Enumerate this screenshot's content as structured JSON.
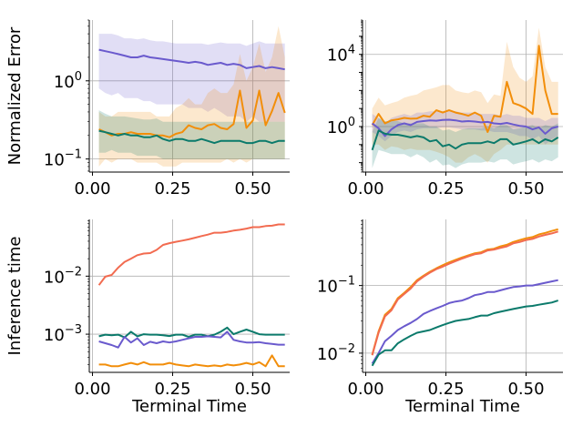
{
  "chart_data": [
    {
      "type": "line",
      "ylabel": "Normalized Error",
      "xlabel": "",
      "y_scale": "log",
      "xlim": [
        -0.01,
        0.615
      ],
      "ylim": [
        0.068,
        6.0
      ],
      "grid": true,
      "xticks": [
        0.0,
        0.25,
        0.5
      ],
      "xtick_labels": [
        "0.00",
        "0.25",
        "0.50"
      ],
      "yticks": [
        0.1,
        1
      ],
      "ytick_labels": [
        "10^-1",
        "10^0"
      ],
      "x": [
        0.02,
        0.04,
        0.06,
        0.08,
        0.1,
        0.12,
        0.14,
        0.16,
        0.18,
        0.2,
        0.22,
        0.24,
        0.26,
        0.28,
        0.3,
        0.32,
        0.34,
        0.36,
        0.38,
        0.4,
        0.42,
        0.44,
        0.46,
        0.48,
        0.5,
        0.52,
        0.54,
        0.56,
        0.58,
        0.6
      ],
      "series": [
        {
          "color": "#6a5acd",
          "values": [
            2.5,
            2.4,
            2.3,
            2.2,
            2.1,
            2.0,
            2.0,
            2.1,
            2.0,
            1.95,
            1.9,
            1.85,
            1.8,
            1.75,
            1.7,
            1.75,
            1.7,
            1.6,
            1.65,
            1.7,
            1.6,
            1.65,
            1.6,
            1.45,
            1.5,
            1.55,
            1.45,
            1.5,
            1.45,
            1.4
          ],
          "band_low": [
            0.8,
            0.7,
            0.65,
            0.7,
            0.6,
            0.6,
            0.6,
            0.55,
            0.55,
            0.5,
            0.5,
            0.5,
            0.5,
            0.5,
            0.45,
            0.45,
            0.45,
            0.4,
            0.45,
            0.4,
            0.35,
            0.35,
            0.35,
            0.3,
            0.35,
            0.3,
            0.3,
            0.3,
            0.3,
            0.3
          ],
          "band_high": [
            4.0,
            4.0,
            4.0,
            3.8,
            3.5,
            3.5,
            3.4,
            3.5,
            3.3,
            3.2,
            3.2,
            3.1,
            3.0,
            3.0,
            3.0,
            3.0,
            3.0,
            2.9,
            3.0,
            3.1,
            3.0,
            3.0,
            3.0,
            2.8,
            3.0,
            3.2,
            3.0,
            3.0,
            3.0,
            3.0
          ]
        },
        {
          "color": "#f28e0a",
          "values": [
            0.24,
            0.22,
            0.2,
            0.21,
            0.21,
            0.22,
            0.21,
            0.21,
            0.21,
            0.2,
            0.2,
            0.19,
            0.21,
            0.22,
            0.27,
            0.25,
            0.24,
            0.27,
            0.28,
            0.25,
            0.24,
            0.28,
            0.75,
            0.25,
            0.31,
            0.75,
            0.27,
            0.41,
            0.7,
            0.39
          ],
          "band_low": [
            0.08,
            0.1,
            0.09,
            0.1,
            0.1,
            0.1,
            0.09,
            0.09,
            0.09,
            0.09,
            0.08,
            0.08,
            0.08,
            0.09,
            0.09,
            0.09,
            0.09,
            0.09,
            0.09,
            0.09,
            0.1,
            0.09,
            0.1,
            0.09,
            0.1,
            0.1,
            0.1,
            0.1,
            0.1,
            0.1
          ],
          "band_high": [
            0.4,
            0.35,
            0.35,
            0.4,
            0.4,
            0.4,
            0.4,
            0.4,
            0.4,
            0.35,
            0.35,
            0.35,
            0.45,
            0.5,
            0.6,
            0.5,
            0.5,
            0.7,
            0.8,
            0.7,
            0.7,
            0.9,
            2.2,
            1.0,
            1.5,
            3.0,
            1.3,
            2.0,
            5.0,
            2.0
          ]
        },
        {
          "color": "#0b7a6b",
          "values": [
            0.23,
            0.22,
            0.21,
            0.2,
            0.21,
            0.2,
            0.2,
            0.19,
            0.19,
            0.2,
            0.18,
            0.17,
            0.18,
            0.18,
            0.17,
            0.17,
            0.18,
            0.17,
            0.16,
            0.17,
            0.17,
            0.17,
            0.17,
            0.16,
            0.16,
            0.17,
            0.17,
            0.16,
            0.17,
            0.17
          ],
          "band_low": [
            0.12,
            0.12,
            0.13,
            0.12,
            0.12,
            0.12,
            0.11,
            0.11,
            0.11,
            0.11,
            0.1,
            0.1,
            0.1,
            0.1,
            0.1,
            0.1,
            0.1,
            0.1,
            0.1,
            0.1,
            0.1,
            0.1,
            0.1,
            0.1,
            0.1,
            0.1,
            0.1,
            0.1,
            0.1,
            0.1
          ],
          "band_high": [
            0.42,
            0.38,
            0.35,
            0.35,
            0.35,
            0.34,
            0.33,
            0.32,
            0.32,
            0.33,
            0.3,
            0.3,
            0.3,
            0.3,
            0.3,
            0.3,
            0.3,
            0.3,
            0.3,
            0.3,
            0.3,
            0.3,
            0.3,
            0.3,
            0.3,
            0.3,
            0.3,
            0.3,
            0.3,
            0.3
          ]
        }
      ]
    },
    {
      "type": "line",
      "ylabel": "",
      "xlabel": "",
      "y_scale": "log",
      "xlim": [
        -0.01,
        0.615
      ],
      "ylim": [
        0.003,
        800000
      ],
      "grid": true,
      "xticks": [
        0.0,
        0.25,
        0.5
      ],
      "xtick_labels": [
        "0.00",
        "0.25",
        "0.50"
      ],
      "yticks": [
        1,
        10000
      ],
      "ytick_labels": [
        "10^0",
        "10^4"
      ],
      "x": [
        0.02,
        0.04,
        0.06,
        0.08,
        0.1,
        0.12,
        0.14,
        0.16,
        0.18,
        0.2,
        0.22,
        0.24,
        0.26,
        0.28,
        0.3,
        0.32,
        0.34,
        0.36,
        0.38,
        0.4,
        0.42,
        0.44,
        0.46,
        0.48,
        0.5,
        0.52,
        0.54,
        0.56,
        0.58,
        0.6
      ],
      "series": [
        {
          "color": "#f28e0a",
          "values": [
            1.2,
            5,
            1.5,
            2.2,
            2.5,
            3,
            2.7,
            2.8,
            4,
            3.5,
            8,
            6,
            8,
            6,
            5,
            4,
            6,
            4,
            0.5,
            4,
            3.5,
            300,
            20,
            15,
            10,
            5,
            30000,
            100,
            5,
            5
          ],
          "band_low": [
            0.1,
            0.1,
            0.05,
            0.08,
            0.07,
            0.05,
            0.06,
            0.05,
            0.05,
            0.05,
            0.04,
            0.03,
            0.02,
            0.01,
            0.01,
            0.02,
            0.03,
            0.02,
            0.01,
            0.03,
            0.05,
            0.1,
            0.1,
            0.1,
            0.1,
            0.1,
            0.1,
            0.1,
            0.1,
            0.1
          ],
          "band_high": [
            10,
            40,
            15,
            20,
            25,
            40,
            50,
            60,
            100,
            120,
            150,
            200,
            200,
            100,
            80,
            70,
            100,
            80,
            20,
            60,
            50,
            50000,
            2000,
            500,
            300,
            600,
            300000,
            2000,
            300,
            300
          ]
        },
        {
          "color": "#6a5acd",
          "values": [
            1.5,
            0.8,
            0.3,
            0.7,
            1.2,
            1.5,
            1.2,
            1.8,
            2.0,
            2.2,
            2.1,
            2.3,
            2.4,
            2.2,
            1.9,
            2.0,
            1.9,
            1.7,
            1.8,
            1.5,
            1.4,
            1.6,
            1.3,
            1.1,
            1.0,
            0.7,
            0.9,
            0.4,
            0.8,
            1.0
          ],
          "band_low": [
            0.5,
            0.3,
            0.15,
            0.3,
            0.5,
            0.6,
            0.5,
            0.7,
            0.8,
            0.8,
            0.8,
            0.9,
            0.9,
            0.8,
            0.7,
            0.7,
            0.7,
            0.6,
            0.6,
            0.5,
            0.5,
            0.5,
            0.4,
            0.3,
            0.3,
            0.2,
            0.3,
            0.1,
            0.2,
            0.3
          ],
          "band_high": [
            5,
            3,
            1.5,
            3,
            4,
            5,
            4,
            6,
            6,
            7,
            7,
            7,
            8,
            7,
            6,
            6,
            6,
            5,
            5,
            5,
            4,
            5,
            4,
            4,
            3,
            3,
            3,
            2,
            3,
            3
          ]
        },
        {
          "color": "#0b7a6b",
          "values": [
            0.05,
            0.6,
            0.4,
            0.35,
            0.35,
            0.3,
            0.25,
            0.3,
            0.25,
            0.15,
            0.18,
            0.08,
            0.1,
            0.06,
            0.1,
            0.12,
            0.12,
            0.12,
            0.15,
            0.12,
            0.2,
            0.2,
            0.1,
            0.12,
            0.15,
            0.2,
            0.12,
            0.2,
            0.15,
            0.25
          ],
          "band_low": [
            0.005,
            0.05,
            0.04,
            0.03,
            0.03,
            0.03,
            0.02,
            0.03,
            0.02,
            0.01,
            0.015,
            0.007,
            0.008,
            0.005,
            0.008,
            0.01,
            0.01,
            0.01,
            0.012,
            0.01,
            0.015,
            0.015,
            0.008,
            0.01,
            0.012,
            0.015,
            0.01,
            0.015,
            0.012,
            0.02
          ],
          "band_high": [
            0.5,
            3,
            2,
            2,
            2,
            1.5,
            1.5,
            1.5,
            1.5,
            1,
            1,
            0.6,
            0.7,
            0.5,
            0.7,
            0.8,
            0.8,
            0.8,
            1,
            0.8,
            1.2,
            1.2,
            0.7,
            0.8,
            1,
            1.2,
            0.8,
            1.2,
            1,
            1.5
          ]
        }
      ]
    },
    {
      "type": "line",
      "ylabel": "Inference time",
      "xlabel": "Terminal Time",
      "y_scale": "log",
      "xlim": [
        -0.01,
        0.615
      ],
      "ylim": [
        0.00022,
        0.095
      ],
      "grid": true,
      "xticks": [
        0.0,
        0.25,
        0.5
      ],
      "xtick_labels": [
        "0.00",
        "0.25",
        "0.50"
      ],
      "yticks": [
        0.001,
        0.01
      ],
      "ytick_labels": [
        "10^-3",
        "10^-2"
      ],
      "x": [
        0.02,
        0.04,
        0.06,
        0.08,
        0.1,
        0.12,
        0.14,
        0.16,
        0.18,
        0.2,
        0.22,
        0.24,
        0.26,
        0.28,
        0.3,
        0.32,
        0.34,
        0.36,
        0.38,
        0.4,
        0.42,
        0.44,
        0.46,
        0.48,
        0.5,
        0.52,
        0.54,
        0.56,
        0.58,
        0.6
      ],
      "series": [
        {
          "color": "#f26b50",
          "values": [
            0.007,
            0.0098,
            0.0105,
            0.014,
            0.0175,
            0.02,
            0.023,
            0.0245,
            0.025,
            0.0283,
            0.0345,
            0.037,
            0.039,
            0.041,
            0.043,
            0.046,
            0.049,
            0.052,
            0.056,
            0.056,
            0.058,
            0.061,
            0.063,
            0.066,
            0.07,
            0.07,
            0.073,
            0.074,
            0.078,
            0.078
          ]
        },
        {
          "color": "#0b7a6b",
          "values": [
            0.00092,
            0.00098,
            0.00096,
            0.00098,
            0.00088,
            0.0011,
            0.00092,
            0.001,
            0.00098,
            0.00098,
            0.00096,
            0.00093,
            0.00098,
            0.00098,
            0.0009,
            0.00098,
            0.00098,
            0.00092,
            0.00098,
            0.0011,
            0.0013,
            0.001,
            0.0011,
            0.0012,
            0.0011,
            0.001,
            0.00098,
            0.00098,
            0.00098,
            0.00098
          ]
        },
        {
          "color": "#6a5acd",
          "values": [
            0.00075,
            0.0007,
            0.00065,
            0.00059,
            0.0009,
            0.00072,
            0.00085,
            0.00065,
            0.00074,
            0.0007,
            0.00075,
            0.00072,
            0.00075,
            0.0008,
            0.00085,
            0.0009,
            0.0009,
            0.00092,
            0.0009,
            0.00088,
            0.0011,
            0.0008,
            0.00075,
            0.00072,
            0.00072,
            0.00073,
            0.0007,
            0.00068,
            0.00066,
            0.00066
          ]
        },
        {
          "color": "#f28e0a",
          "values": [
            0.0003,
            0.0003,
            0.00028,
            0.00028,
            0.0003,
            0.00032,
            0.0003,
            0.00033,
            0.0003,
            0.0003,
            0.0003,
            0.00032,
            0.0003,
            0.00029,
            0.00028,
            0.0003,
            0.00029,
            0.00028,
            0.00029,
            0.00028,
            0.0003,
            0.00029,
            0.0003,
            0.00032,
            0.0003,
            0.00033,
            0.00028,
            0.00043,
            0.00028,
            0.00028
          ]
        }
      ]
    },
    {
      "type": "line",
      "ylabel": "",
      "xlabel": "Terminal Time",
      "y_scale": "log",
      "xlim": [
        -0.01,
        0.615
      ],
      "ylim": [
        0.0052,
        0.95
      ],
      "grid": true,
      "xticks": [
        0.0,
        0.25,
        0.5
      ],
      "xtick_labels": [
        "0.00",
        "0.25",
        "0.50"
      ],
      "yticks": [
        0.01,
        0.1
      ],
      "ytick_labels": [
        "10^-2",
        "10^-1"
      ],
      "x": [
        0.02,
        0.04,
        0.06,
        0.08,
        0.1,
        0.12,
        0.14,
        0.16,
        0.18,
        0.2,
        0.22,
        0.24,
        0.26,
        0.28,
        0.3,
        0.32,
        0.34,
        0.36,
        0.38,
        0.4,
        0.42,
        0.44,
        0.46,
        0.48,
        0.5,
        0.52,
        0.54,
        0.56,
        0.58,
        0.6
      ],
      "series": [
        {
          "color": "#f28e0a",
          "values": [
            0.0095,
            0.021,
            0.037,
            0.045,
            0.065,
            0.078,
            0.095,
            0.12,
            0.14,
            0.16,
            0.18,
            0.2,
            0.22,
            0.24,
            0.26,
            0.28,
            0.3,
            0.31,
            0.34,
            0.35,
            0.38,
            0.4,
            0.44,
            0.47,
            0.5,
            0.52,
            0.57,
            0.6,
            0.64,
            0.68
          ]
        },
        {
          "color": "#f26b50",
          "values": [
            0.0093,
            0.02,
            0.035,
            0.043,
            0.062,
            0.075,
            0.09,
            0.115,
            0.135,
            0.155,
            0.175,
            0.19,
            0.21,
            0.23,
            0.25,
            0.27,
            0.29,
            0.3,
            0.33,
            0.34,
            0.36,
            0.38,
            0.42,
            0.44,
            0.47,
            0.49,
            0.53,
            0.56,
            0.59,
            0.63
          ]
        },
        {
          "color": "#6a5acd",
          "values": [
            0.007,
            0.01,
            0.015,
            0.018,
            0.022,
            0.025,
            0.028,
            0.032,
            0.038,
            0.042,
            0.046,
            0.05,
            0.055,
            0.058,
            0.06,
            0.065,
            0.072,
            0.075,
            0.08,
            0.08,
            0.085,
            0.09,
            0.095,
            0.097,
            0.1,
            0.1,
            0.105,
            0.11,
            0.115,
            0.12
          ]
        },
        {
          "color": "#0b7a6b",
          "values": [
            0.0065,
            0.0095,
            0.011,
            0.011,
            0.014,
            0.016,
            0.018,
            0.02,
            0.021,
            0.022,
            0.024,
            0.026,
            0.028,
            0.03,
            0.031,
            0.032,
            0.034,
            0.036,
            0.036,
            0.039,
            0.041,
            0.043,
            0.045,
            0.047,
            0.049,
            0.05,
            0.052,
            0.054,
            0.056,
            0.06
          ]
        }
      ]
    }
  ]
}
